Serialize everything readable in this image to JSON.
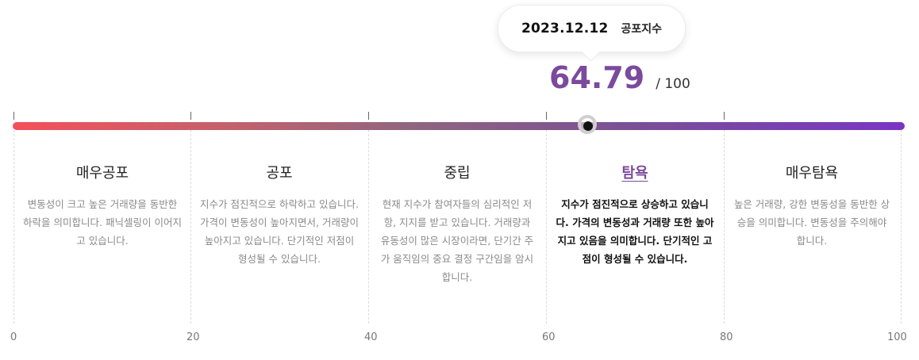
{
  "tooltip": {
    "date": "2023.12.12",
    "label": "공포지수"
  },
  "score": {
    "value": "64.79",
    "max": "/ 100",
    "fraction": 0.6479
  },
  "colors": {
    "accent": "#7b4a9c",
    "gradient_start": "#f4505a",
    "gradient_end": "#7a35c4"
  },
  "zones": [
    {
      "title": "매우공포",
      "desc": "변동성이 크고 높은 거래량을 동반한 하락을 의미합니다. 패닉셀링이 이어지고 있습니다."
    },
    {
      "title": "공포",
      "desc": "지수가 점진적으로 하락하고 있습니다. 가격이 변동성이 높아지면서, 거래량이 높아지고 있습니다. 단기적인 저점이 형성될 수 있습니다."
    },
    {
      "title": "중립",
      "desc": "현재 지수가 참여자들의 심리적인 저항, 지지를 받고 있습니다. 거래량과 유동성이 많은 시장이라면, 단기간 주가 움직임의 중요 결정 구간임을 암시합니다."
    },
    {
      "title": "탐욕",
      "desc": "지수가 점진적으로 상승하고 있습니다. 가격의 변동성과 거래량 또한 높아지고 있음을 의미합니다. 단기적인 고점이 형성될 수 있습니다."
    },
    {
      "title": "매우탐욕",
      "desc": "높은 거래량, 강한 변동성을 동반한 상승을 의미합니다. 변동성을 주의해야 합니다."
    }
  ],
  "active_zone": "탐욕",
  "axis": [
    "0",
    "20",
    "40",
    "60",
    "80",
    "100"
  ]
}
